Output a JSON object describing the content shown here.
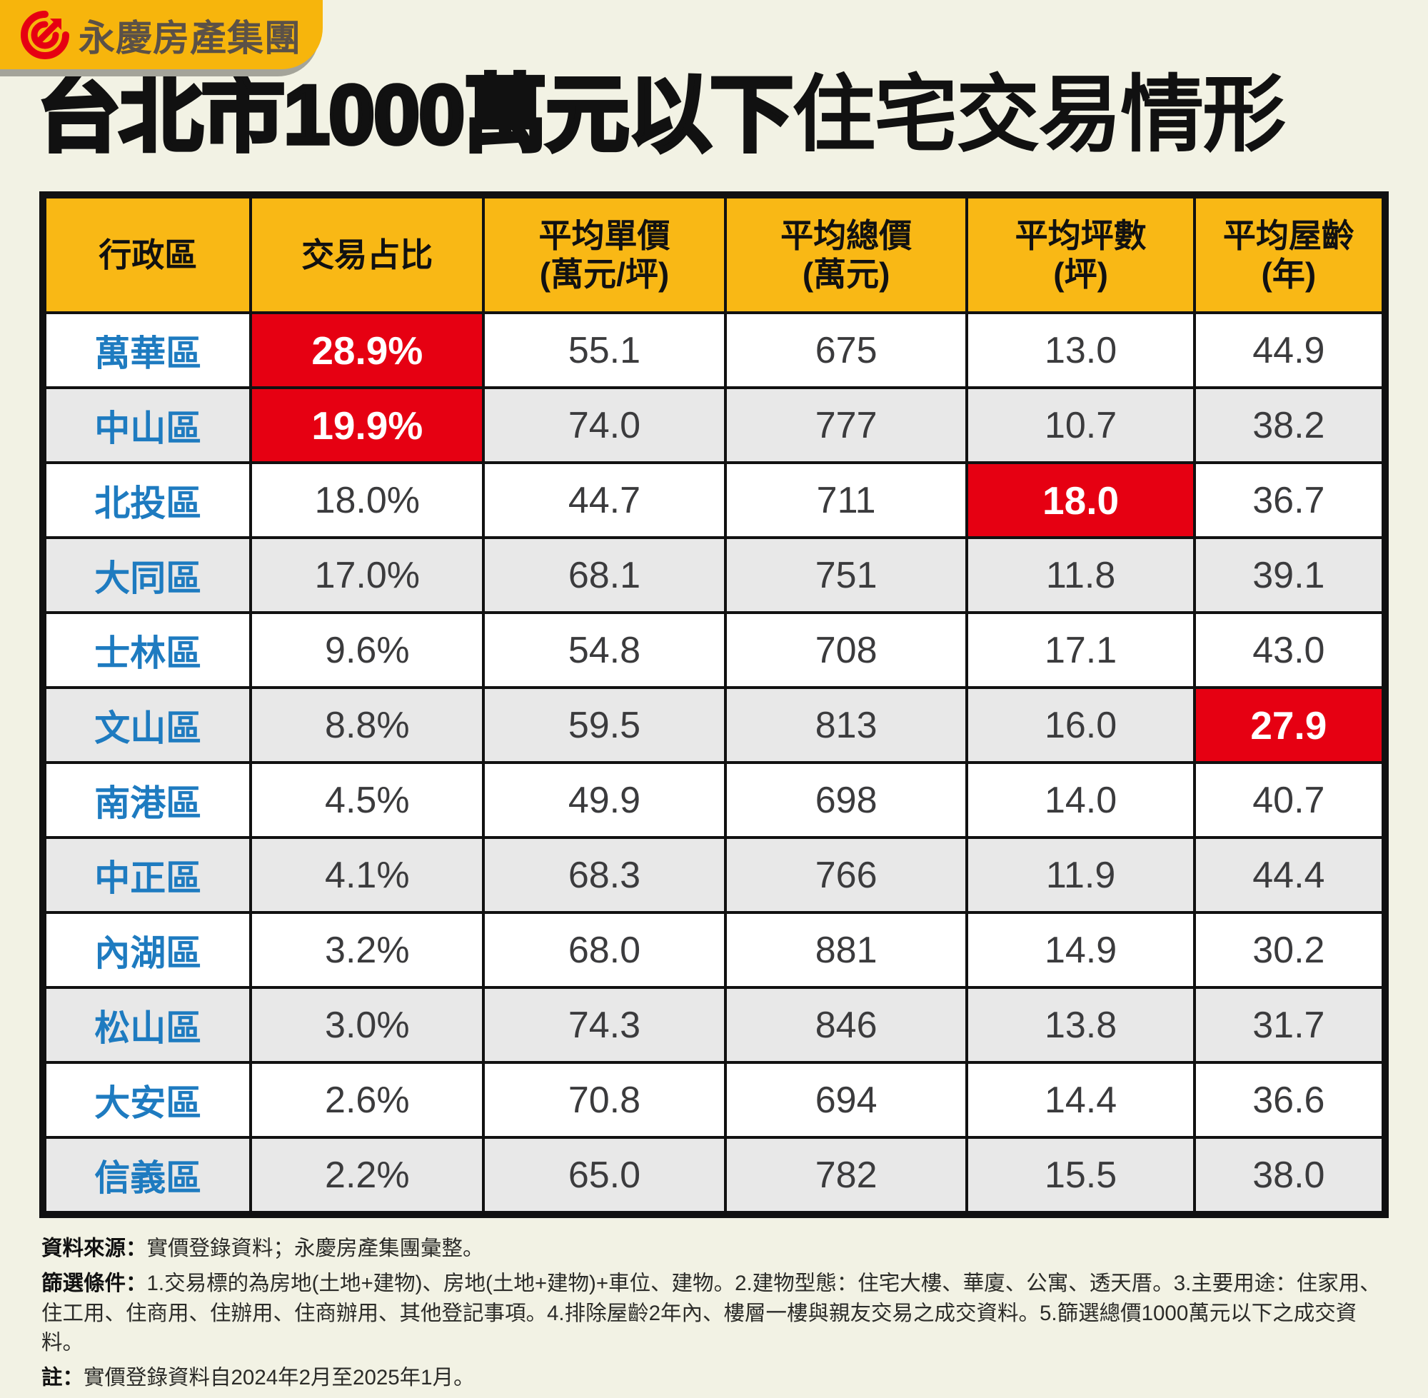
{
  "brand": {
    "logo_text": "永慶房產集團",
    "logo_icon": "yungching-swirl-arrow-icon",
    "badge_color": "#F7B50C",
    "logo_red": "#E60012"
  },
  "title": {
    "strong": "台北市1000萬元以下",
    "light": "住宅交易情形"
  },
  "colors": {
    "page_bg": "#F2F2E4",
    "header_bg": "#F9B815",
    "highlight_red": "#E60012",
    "district_blue": "#1E7BC0",
    "row_alt_bg": "#E8E8E8",
    "value_text": "#3B3B3D",
    "border_black": "#111111"
  },
  "table": {
    "headers": [
      {
        "key": "district",
        "label": "行政區",
        "sub": ""
      },
      {
        "key": "share",
        "label": "交易占比",
        "sub": ""
      },
      {
        "key": "avg-unit-price",
        "label": "平均單價",
        "sub": "(萬元/坪)"
      },
      {
        "key": "avg-total-price",
        "label": "平均總價",
        "sub": "(萬元)"
      },
      {
        "key": "avg-size",
        "label": "平均坪數",
        "sub": "(坪)"
      },
      {
        "key": "avg-age",
        "label": "平均屋齡",
        "sub": "(年)"
      }
    ],
    "rows": [
      {
        "district": "萬華區",
        "values": [
          "28.9%",
          "55.1",
          "675",
          "13.0",
          "44.9"
        ],
        "highlight": 0
      },
      {
        "district": "中山區",
        "values": [
          "19.9%",
          "74.0",
          "777",
          "10.7",
          "38.2"
        ],
        "highlight": 0
      },
      {
        "district": "北投區",
        "values": [
          "18.0%",
          "44.7",
          "711",
          "18.0",
          "36.7"
        ],
        "highlight": 3
      },
      {
        "district": "大同區",
        "values": [
          "17.0%",
          "68.1",
          "751",
          "11.8",
          "39.1"
        ],
        "highlight": null
      },
      {
        "district": "士林區",
        "values": [
          "9.6%",
          "54.8",
          "708",
          "17.1",
          "43.0"
        ],
        "highlight": null
      },
      {
        "district": "文山區",
        "values": [
          "8.8%",
          "59.5",
          "813",
          "16.0",
          "27.9"
        ],
        "highlight": 4
      },
      {
        "district": "南港區",
        "values": [
          "4.5%",
          "49.9",
          "698",
          "14.0",
          "40.7"
        ],
        "highlight": null
      },
      {
        "district": "中正區",
        "values": [
          "4.1%",
          "68.3",
          "766",
          "11.9",
          "44.4"
        ],
        "highlight": null
      },
      {
        "district": "內湖區",
        "values": [
          "3.2%",
          "68.0",
          "881",
          "14.9",
          "30.2"
        ],
        "highlight": null
      },
      {
        "district": "松山區",
        "values": [
          "3.0%",
          "74.3",
          "846",
          "13.8",
          "31.7"
        ],
        "highlight": null
      },
      {
        "district": "大安區",
        "values": [
          "2.6%",
          "70.8",
          "694",
          "14.4",
          "36.6"
        ],
        "highlight": null
      },
      {
        "district": "信義區",
        "values": [
          "2.2%",
          "65.0",
          "782",
          "15.5",
          "38.0"
        ],
        "highlight": null
      }
    ]
  },
  "chart_data": {
    "type": "table",
    "title": "台北市1000萬元以下住宅交易情形",
    "columns": [
      "行政區",
      "交易占比",
      "平均單價(萬元/坪)",
      "平均總價(萬元)",
      "平均坪數(坪)",
      "平均屋齡(年)"
    ],
    "rows": [
      [
        "萬華區",
        "28.9%",
        55.1,
        675,
        13.0,
        44.9
      ],
      [
        "中山區",
        "19.9%",
        74.0,
        777,
        10.7,
        38.2
      ],
      [
        "北投區",
        "18.0%",
        44.7,
        711,
        18.0,
        36.7
      ],
      [
        "大同區",
        "17.0%",
        68.1,
        751,
        11.8,
        39.1
      ],
      [
        "士林區",
        "9.6%",
        54.8,
        708,
        17.1,
        43.0
      ],
      [
        "文山區",
        "8.8%",
        59.5,
        813,
        16.0,
        27.9
      ],
      [
        "南港區",
        "4.5%",
        49.9,
        698,
        14.0,
        40.7
      ],
      [
        "中正區",
        "4.1%",
        68.3,
        766,
        11.9,
        44.4
      ],
      [
        "內湖區",
        "3.2%",
        68.0,
        881,
        14.9,
        30.2
      ],
      [
        "松山區",
        "3.0%",
        74.3,
        846,
        13.8,
        31.7
      ],
      [
        "大安區",
        "2.6%",
        70.8,
        694,
        14.4,
        36.6
      ],
      [
        "信義區",
        "2.2%",
        65.0,
        782,
        15.5,
        38.0
      ]
    ],
    "highlighted_cells": [
      {
        "row": "萬華區",
        "column": "交易占比",
        "value": "28.9%"
      },
      {
        "row": "中山區",
        "column": "交易占比",
        "value": "19.9%"
      },
      {
        "row": "北投區",
        "column": "平均坪數(坪)",
        "value": 18.0
      },
      {
        "row": "文山區",
        "column": "平均屋齡(年)",
        "value": 27.9
      }
    ]
  },
  "footer": {
    "source_label": "資料來源：",
    "source_text": "實價登錄資料；永慶房產集團彙整。",
    "filter_label": "篩選條件：",
    "filter_text": "1.交易標的為房地(土地+建物)、房地(土地+建物)+車位、建物。2.建物型態：住宅大樓、華廈、公寓、透天厝。3.主要用途：住家用、住工用、住商用、住辦用、住商辦用、其他登記事項。4.排除屋齡2年內、樓層一樓與親友交易之成交資料。5.篩選總價1000萬元以下之成交資料。",
    "note_label": "註：",
    "note_text": "實價登錄資料自2024年2月至2025年1月。"
  }
}
